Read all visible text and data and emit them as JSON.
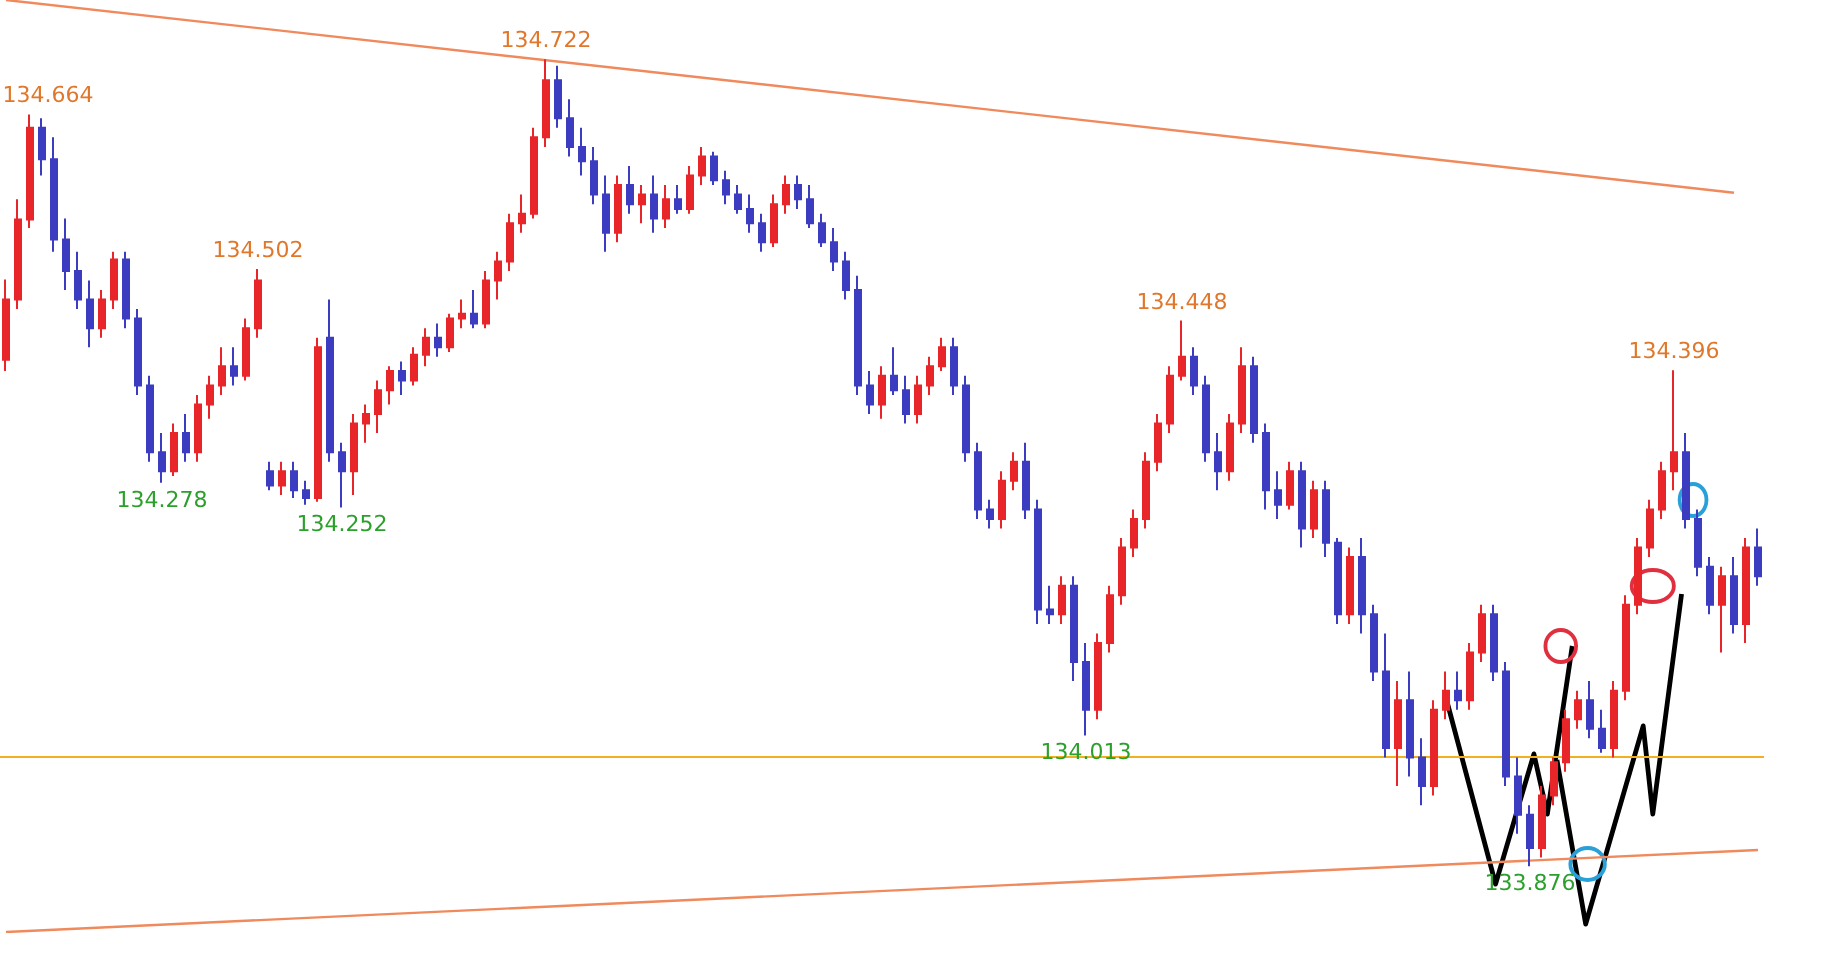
{
  "chart_data": {
    "type": "candlestick",
    "categories": [
      null,
      null,
      null,
      null,
      null,
      null,
      null,
      null,
      null,
      null,
      null,
      null,
      null,
      null,
      null,
      null,
      null,
      null,
      null,
      null,
      null,
      null,
      null,
      null,
      null,
      null,
      null,
      null,
      null,
      null,
      null,
      null,
      null,
      null,
      null,
      null,
      null,
      null,
      null,
      null,
      null,
      null,
      null,
      null,
      null,
      null,
      null,
      null,
      null,
      null,
      null,
      null,
      null,
      null,
      null,
      null,
      null,
      null,
      null,
      null,
      null,
      null,
      null,
      null,
      null,
      null,
      null,
      null,
      null,
      null,
      null,
      null,
      null,
      null,
      null,
      null,
      null,
      null,
      null,
      null,
      null,
      null,
      null,
      null,
      null,
      null,
      null,
      null,
      null,
      null,
      null,
      null,
      null,
      null,
      null,
      null,
      null,
      null,
      null,
      null,
      null,
      null,
      null,
      null,
      null,
      null,
      null,
      null,
      null,
      null,
      null,
      null,
      null,
      null,
      null,
      null,
      null,
      null,
      null,
      null,
      null,
      null,
      null,
      null,
      null,
      null,
      null,
      null,
      null,
      null,
      null,
      null,
      null,
      null,
      null,
      null,
      null,
      null,
      null,
      null,
      null,
      null,
      null,
      null,
      null,
      null,
      null
    ],
    "colors": [
      "#e8262a",
      "#e8262a",
      "#e8262a",
      "#3c3cc0",
      "#3c3cc0",
      "#3c3cc0",
      "#3c3cc0",
      "#3c3cc0",
      "#e8262a",
      "#e8262a",
      "#3c3cc0",
      "#3c3cc0",
      "#3c3cc0",
      "#3c3cc0",
      "#e8262a",
      "#3c3cc0",
      "#e8262a",
      "#e8262a",
      "#e8262a",
      "#3c3cc0",
      "#e8262a",
      "#e8262a",
      "#3c3cc0",
      "#e8262a",
      "#3c3cc0",
      "#3c3cc0",
      "#e8262a",
      "#3c3cc0",
      "#3c3cc0",
      "#e8262a",
      "#e8262a",
      "#e8262a",
      "#e8262a",
      "#3c3cc0",
      "#e8262a",
      "#e8262a",
      "#3c3cc0",
      "#e8262a",
      "#e8262a",
      "#3c3cc0",
      "#e8262a",
      "#e8262a",
      "#e8262a",
      "#e8262a",
      "#e8262a",
      "#e8262a",
      "#3c3cc0",
      "#3c3cc0",
      "#3c3cc0",
      "#3c3cc0",
      "#3c3cc0",
      "#e8262a",
      "#3c3cc0",
      "#e8262a",
      "#3c3cc0",
      "#e8262a",
      "#3c3cc0",
      "#e8262a",
      "#e8262a",
      "#3c3cc0",
      "#3c3cc0",
      "#3c3cc0",
      "#3c3cc0",
      "#3c3cc0",
      "#e8262a",
      "#e8262a",
      "#3c3cc0",
      "#3c3cc0",
      "#3c3cc0",
      "#3c3cc0",
      "#3c3cc0",
      "#3c3cc0",
      "#3c3cc0",
      "#e8262a",
      "#3c3cc0",
      "#3c3cc0",
      "#e8262a",
      "#e8262a",
      "#e8262a",
      "#3c3cc0",
      "#3c3cc0",
      "#3c3cc0",
      "#3c3cc0",
      "#e8262a",
      "#e8262a",
      "#3c3cc0",
      "#3c3cc0",
      "#3c3cc0",
      "#e8262a",
      "#3c3cc0",
      "#3c3cc0",
      "#e8262a",
      "#e8262a",
      "#e8262a",
      "#e8262a",
      "#e8262a",
      "#e8262a",
      "#e8262a",
      "#e8262a",
      "#3c3cc0",
      "#3c3cc0",
      "#3c3cc0",
      "#e8262a",
      "#e8262a",
      "#3c3cc0",
      "#3c3cc0",
      "#3c3cc0",
      "#e8262a",
      "#3c3cc0",
      "#e8262a",
      "#3c3cc0",
      "#3c3cc0",
      "#e8262a",
      "#3c3cc0",
      "#3c3cc0",
      "#3c3cc0",
      "#e8262a",
      "#3c3cc0",
      "#3c3cc0",
      "#e8262a",
      "#e8262a",
      "#3c3cc0",
      "#e8262a",
      "#e8262a",
      "#3c3cc0",
      "#3c3cc0",
      "#3c3cc0",
      "#3c3cc0",
      "#e8262a",
      "#e8262a",
      "#e8262a",
      "#e8262a",
      "#3c3cc0",
      "#3c3cc0",
      "#e8262a",
      "#e8262a",
      "#e8262a",
      "#e8262a",
      "#e8262a",
      "#e8262a",
      "#3c3cc0",
      "#3c3cc0",
      "#3c3cc0",
      "#e8262a",
      "#3c3cc0",
      "#e8262a",
      "#3c3cc0"
    ],
    "ohlc": [
      [
        134.407,
        134.491,
        134.395,
        134.47
      ],
      [
        134.47,
        134.575,
        134.46,
        134.554
      ],
      [
        134.554,
        134.664,
        134.545,
        134.65
      ],
      [
        134.65,
        134.66,
        134.6,
        134.617
      ],
      [
        134.617,
        134.64,
        134.52,
        134.533
      ],
      [
        134.533,
        134.555,
        134.48,
        134.5
      ],
      [
        134.5,
        134.52,
        134.46,
        134.47
      ],
      [
        134.47,
        134.49,
        134.42,
        134.44
      ],
      [
        134.44,
        134.48,
        134.43,
        134.47
      ],
      [
        134.47,
        134.52,
        134.46,
        134.512
      ],
      [
        134.512,
        134.52,
        134.44,
        134.45
      ],
      [
        134.45,
        134.46,
        134.37,
        134.38
      ],
      [
        134.38,
        134.39,
        134.3,
        134.31
      ],
      [
        134.31,
        134.33,
        134.278,
        134.29
      ],
      [
        134.29,
        134.34,
        134.285,
        134.33
      ],
      [
        134.33,
        134.35,
        134.3,
        134.31
      ],
      [
        134.31,
        134.37,
        134.3,
        134.36
      ],
      [
        134.36,
        134.39,
        134.345,
        134.38
      ],
      [
        134.38,
        134.42,
        134.37,
        134.4
      ],
      [
        134.4,
        134.42,
        134.38,
        134.39
      ],
      [
        134.39,
        134.45,
        134.385,
        134.44
      ],
      [
        134.44,
        134.502,
        134.43,
        134.49
      ],
      [
        134.29,
        134.3,
        134.27,
        134.275
      ],
      [
        134.275,
        134.3,
        134.265,
        134.29
      ],
      [
        134.29,
        134.3,
        134.262,
        134.27
      ],
      [
        134.27,
        134.28,
        134.255,
        134.262
      ],
      [
        134.262,
        134.43,
        134.258,
        134.42
      ],
      [
        134.43,
        134.47,
        134.3,
        134.31
      ],
      [
        134.31,
        134.32,
        134.252,
        134.29
      ],
      [
        134.29,
        134.35,
        134.265,
        134.34
      ],
      [
        134.34,
        134.36,
        134.32,
        134.35
      ],
      [
        134.35,
        134.385,
        134.33,
        134.375
      ],
      [
        134.375,
        134.4,
        134.36,
        134.395
      ],
      [
        134.395,
        134.405,
        134.37,
        134.385
      ],
      [
        134.385,
        134.42,
        134.38,
        134.412
      ],
      [
        134.412,
        134.44,
        134.4,
        134.43
      ],
      [
        134.43,
        134.445,
        134.41,
        134.42
      ],
      [
        134.42,
        134.455,
        134.415,
        134.45
      ],
      [
        134.45,
        134.47,
        134.44,
        134.455
      ],
      [
        134.455,
        134.48,
        134.44,
        134.445
      ],
      [
        134.445,
        134.5,
        134.44,
        134.49
      ],
      [
        134.49,
        134.52,
        134.47,
        134.51
      ],
      [
        134.51,
        134.56,
        134.5,
        134.55
      ],
      [
        134.55,
        134.58,
        134.54,
        134.56
      ],
      [
        134.56,
        134.65,
        134.555,
        134.64
      ],
      [
        134.64,
        134.722,
        134.63,
        134.7
      ],
      [
        134.7,
        134.715,
        134.65,
        134.66
      ],
      [
        134.66,
        134.68,
        134.62,
        134.63
      ],
      [
        134.63,
        134.65,
        134.6,
        134.615
      ],
      [
        134.615,
        134.63,
        134.57,
        134.58
      ],
      [
        134.58,
        134.6,
        134.52,
        134.54
      ],
      [
        134.54,
        134.6,
        134.53,
        134.59
      ],
      [
        134.59,
        134.61,
        134.56,
        134.57
      ],
      [
        134.57,
        134.59,
        134.55,
        134.58
      ],
      [
        134.58,
        134.6,
        134.54,
        134.555
      ],
      [
        134.555,
        134.59,
        134.545,
        134.575
      ],
      [
        134.575,
        134.59,
        134.56,
        134.565
      ],
      [
        134.565,
        134.61,
        134.56,
        134.6
      ],
      [
        134.6,
        134.63,
        134.59,
        134.62
      ],
      [
        134.62,
        134.625,
        134.59,
        134.595
      ],
      [
        134.595,
        134.605,
        134.57,
        134.58
      ],
      [
        134.58,
        134.59,
        134.56,
        134.565
      ],
      [
        134.565,
        134.58,
        134.54,
        134.55
      ],
      [
        134.55,
        134.56,
        134.52,
        134.53
      ],
      [
        134.53,
        134.58,
        134.525,
        134.57
      ],
      [
        134.57,
        134.6,
        134.56,
        134.59
      ],
      [
        134.59,
        134.6,
        134.565,
        134.575
      ],
      [
        134.575,
        134.59,
        134.545,
        134.55
      ],
      [
        134.55,
        134.56,
        134.525,
        134.53
      ],
      [
        134.53,
        134.545,
        134.5,
        134.51
      ],
      [
        134.51,
        134.52,
        134.47,
        134.48
      ],
      [
        134.48,
        134.495,
        134.37,
        134.38
      ],
      [
        134.38,
        134.395,
        134.35,
        134.36
      ],
      [
        134.36,
        134.4,
        134.345,
        134.39
      ],
      [
        134.39,
        134.42,
        134.37,
        134.375
      ],
      [
        134.375,
        134.39,
        134.34,
        134.35
      ],
      [
        134.35,
        134.39,
        134.34,
        134.38
      ],
      [
        134.38,
        134.41,
        134.37,
        134.4
      ],
      [
        134.4,
        134.43,
        134.395,
        134.42
      ],
      [
        134.42,
        134.43,
        134.37,
        134.38
      ],
      [
        134.38,
        134.39,
        134.3,
        134.31
      ],
      [
        134.31,
        134.32,
        134.24,
        134.25
      ],
      [
        134.25,
        134.26,
        134.23,
        134.24
      ],
      [
        134.24,
        134.29,
        134.23,
        134.28
      ],
      [
        134.28,
        134.31,
        134.27,
        134.3
      ],
      [
        134.3,
        134.32,
        134.24,
        134.25
      ],
      [
        134.25,
        134.26,
        134.13,
        134.145
      ],
      [
        134.145,
        134.17,
        134.13,
        134.14
      ],
      [
        134.14,
        134.18,
        134.13,
        134.17
      ],
      [
        134.17,
        134.18,
        134.07,
        134.09
      ],
      [
        134.09,
        134.11,
        134.013,
        134.04
      ],
      [
        134.04,
        134.12,
        134.03,
        134.11
      ],
      [
        134.11,
        134.17,
        134.1,
        134.16
      ],
      [
        134.16,
        134.22,
        134.15,
        134.21
      ],
      [
        134.21,
        134.25,
        134.2,
        134.24
      ],
      [
        134.24,
        134.31,
        134.23,
        134.3
      ],
      [
        134.3,
        134.35,
        134.29,
        134.34
      ],
      [
        134.34,
        134.4,
        134.33,
        134.39
      ],
      [
        134.39,
        134.448,
        134.385,
        134.41
      ],
      [
        134.41,
        134.42,
        134.37,
        134.38
      ],
      [
        134.38,
        134.39,
        134.3,
        134.31
      ],
      [
        134.31,
        134.33,
        134.27,
        134.29
      ],
      [
        134.29,
        134.35,
        134.28,
        134.34
      ],
      [
        134.34,
        134.42,
        134.33,
        134.4
      ],
      [
        134.4,
        134.41,
        134.32,
        134.33
      ],
      [
        134.33,
        134.34,
        134.25,
        134.27
      ],
      [
        134.27,
        134.29,
        134.24,
        134.255
      ],
      [
        134.255,
        134.3,
        134.25,
        134.29
      ],
      [
        134.29,
        134.3,
        134.21,
        134.23
      ],
      [
        134.23,
        134.28,
        134.22,
        134.27
      ],
      [
        134.27,
        134.28,
        134.2,
        134.215
      ],
      [
        134.215,
        134.22,
        134.13,
        134.14
      ],
      [
        134.14,
        134.21,
        134.13,
        134.2
      ],
      [
        134.2,
        134.22,
        134.12,
        134.14
      ],
      [
        134.14,
        134.15,
        134.07,
        134.08
      ],
      [
        134.08,
        134.12,
        133.99,
        134.0
      ],
      [
        134.0,
        134.07,
        133.96,
        134.05
      ],
      [
        134.05,
        134.08,
        133.97,
        133.99
      ],
      [
        133.99,
        134.01,
        133.94,
        133.96
      ],
      [
        133.96,
        134.05,
        133.95,
        134.04
      ],
      [
        134.04,
        134.08,
        134.03,
        134.06
      ],
      [
        134.06,
        134.08,
        134.04,
        134.05
      ],
      [
        134.05,
        134.11,
        134.04,
        134.1
      ],
      [
        134.1,
        134.15,
        134.09,
        134.14
      ],
      [
        134.14,
        134.15,
        134.07,
        134.08
      ],
      [
        134.08,
        134.09,
        133.96,
        133.97
      ],
      [
        133.97,
        133.99,
        133.91,
        133.93
      ],
      [
        133.93,
        133.94,
        133.876,
        133.895
      ],
      [
        133.895,
        133.96,
        133.885,
        133.95
      ],
      [
        133.95,
        133.99,
        133.94,
        133.985
      ],
      [
        133.985,
        134.04,
        133.975,
        134.03
      ],
      [
        134.03,
        134.06,
        134.02,
        134.05
      ],
      [
        134.05,
        134.07,
        134.01,
        134.02
      ],
      [
        134.02,
        134.04,
        133.995,
        134.0
      ],
      [
        134.0,
        134.07,
        133.99,
        134.06
      ],
      [
        134.06,
        134.16,
        134.05,
        134.15
      ],
      [
        134.15,
        134.22,
        134.14,
        134.21
      ],
      [
        134.21,
        134.26,
        134.2,
        134.25
      ],
      [
        134.25,
        134.3,
        134.24,
        134.29
      ],
      [
        134.29,
        134.396,
        134.27,
        134.31
      ],
      [
        134.31,
        134.33,
        134.23,
        134.24
      ],
      [
        134.24,
        134.25,
        134.18,
        134.19
      ],
      [
        134.19,
        134.2,
        134.14,
        134.15
      ],
      [
        134.15,
        134.19,
        134.1,
        134.18
      ],
      [
        134.18,
        134.2,
        134.12,
        134.13
      ],
      [
        134.13,
        134.22,
        134.11,
        134.21
      ],
      [
        134.21,
        134.23,
        134.17,
        134.18
      ]
    ],
    "series": [
      {
        "type": "line",
        "color": "#f08a5d",
        "values": [
          134.784,
          null,
          null,
          null,
          null,
          null,
          null,
          null,
          null,
          null,
          null,
          null,
          null,
          null,
          null,
          null,
          null,
          null,
          null,
          null,
          null,
          null,
          null,
          null,
          null,
          null,
          null,
          null,
          null,
          null,
          null,
          null,
          null,
          null,
          null,
          null,
          null,
          null,
          null,
          null,
          null,
          null,
          null,
          null,
          null,
          null,
          null,
          null,
          null,
          null,
          null,
          null,
          null,
          null,
          null,
          null,
          null,
          null,
          null,
          null,
          null,
          null,
          null,
          null,
          null,
          null,
          null,
          null,
          null,
          null,
          null,
          null,
          null,
          null,
          null,
          null,
          null,
          null,
          null,
          null,
          null,
          null,
          null,
          null,
          null,
          null,
          null,
          null,
          null,
          null,
          null,
          null,
          null,
          null,
          null,
          null,
          null,
          null,
          null,
          null,
          null,
          null,
          null,
          null,
          null,
          null,
          null,
          null,
          null,
          null,
          null,
          null,
          null,
          null,
          null,
          null,
          null,
          null,
          null,
          null,
          null,
          null,
          null,
          null,
          null,
          null,
          null,
          null,
          null,
          null,
          null,
          null,
          null,
          null,
          null,
          null,
          null,
          null,
          null,
          null,
          null,
          null,
          null,
          null,
          134.582,
          null,
          null
        ]
      },
      {
        "type": "line",
        "color": "#f08a5d",
        "values": [
          133.807,
          null,
          null,
          null,
          null,
          null,
          null,
          null,
          null,
          null,
          null,
          null,
          null,
          null,
          null,
          null,
          null,
          null,
          null,
          null,
          null,
          null,
          null,
          null,
          null,
          null,
          null,
          null,
          null,
          null,
          null,
          null,
          null,
          null,
          null,
          null,
          null,
          null,
          null,
          null,
          null,
          null,
          null,
          null,
          null,
          null,
          null,
          null,
          null,
          null,
          null,
          null,
          null,
          null,
          null,
          null,
          null,
          null,
          null,
          null,
          null,
          null,
          null,
          null,
          null,
          null,
          null,
          null,
          null,
          null,
          null,
          null,
          null,
          null,
          null,
          null,
          null,
          null,
          null,
          null,
          null,
          null,
          null,
          null,
          null,
          null,
          null,
          null,
          null,
          null,
          null,
          null,
          null,
          null,
          null,
          null,
          null,
          null,
          null,
          null,
          null,
          null,
          null,
          null,
          null,
          null,
          null,
          null,
          null,
          null,
          null,
          null,
          null,
          null,
          null,
          null,
          null,
          null,
          null,
          null,
          null,
          null,
          null,
          null,
          null,
          null,
          null,
          null,
          null,
          null,
          null,
          null,
          null,
          null,
          null,
          null,
          null,
          null,
          null,
          null,
          null,
          null,
          null,
          null,
          null,
          null,
          133.893
        ]
      }
    ],
    "ref_lines": [
      {
        "axis": "y",
        "value": 133.99,
        "color": "#f0b020"
      }
    ],
    "annotations": [
      {
        "text": "134.664",
        "y": 134.664
      },
      {
        "text": "134.278",
        "y": 134.278
      },
      {
        "text": "134.502",
        "y": 134.502
      },
      {
        "text": "134.252",
        "y": 134.252
      },
      {
        "text": "134.722",
        "y": 134.722
      },
      {
        "text": "134.448",
        "y": 134.448
      },
      {
        "text": "134.013",
        "y": 134.013
      },
      {
        "text": "133.876",
        "y": 133.876
      },
      {
        "text": "134.396",
        "y": 134.396
      }
    ]
  }
}
